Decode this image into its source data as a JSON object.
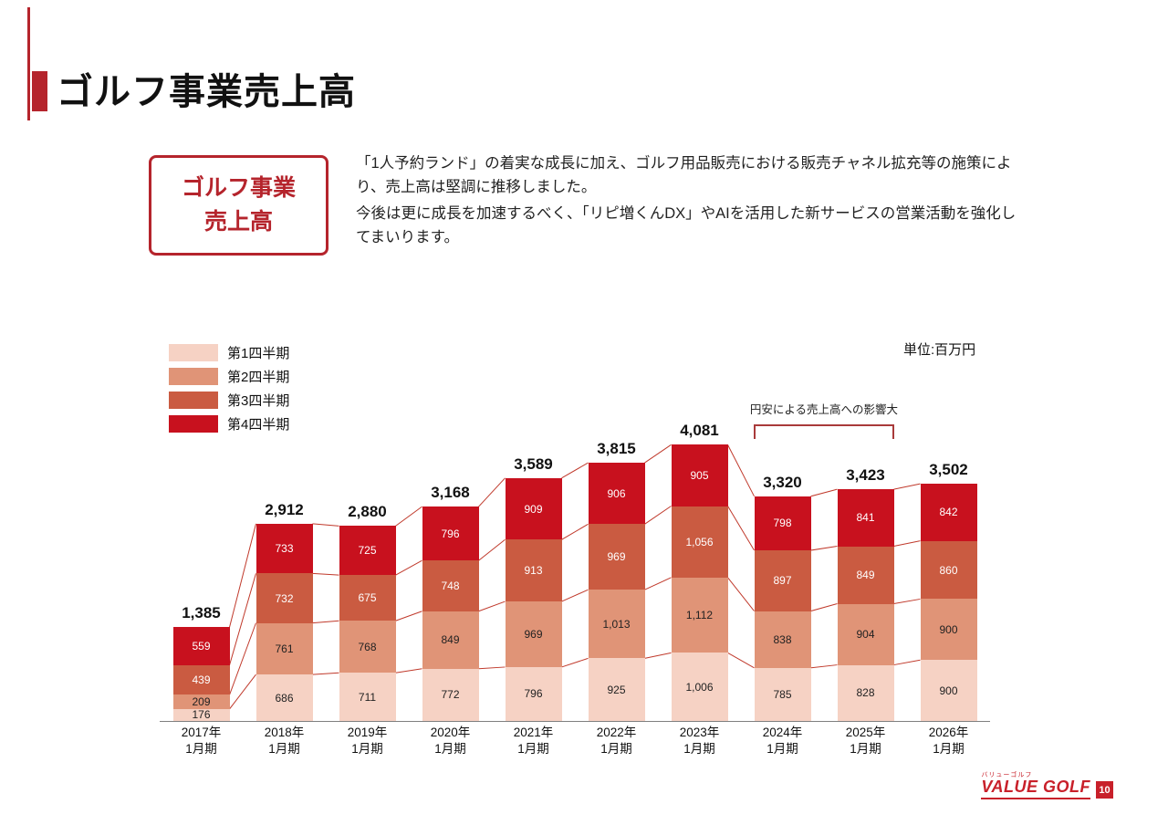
{
  "page": {
    "title": "ゴルフ事業売上高",
    "page_number": "10"
  },
  "summary_box": {
    "label_line1": "ゴルフ事業",
    "label_line2": "売上高"
  },
  "description": {
    "para1": "「1人予約ランド」の着実な成長に加え、ゴルフ用品販売における販売チャネル拡充等の施策により、売上高は堅調に推移しました。",
    "para2": "今後は更に成長を加速するべく、「リピ増くんDX」やAIを活用した新サービスの営業活動を強化してまいります。"
  },
  "chart_data": {
    "type": "bar",
    "stacked": true,
    "unit_label": "単位:百万円",
    "annotation": "円安による売上高への影響大",
    "annotation_span_categories": [
      "2024年1月期",
      "2025年1月期"
    ],
    "annotation_span_indexes": [
      7,
      8
    ],
    "legend": [
      "第1四半期",
      "第2四半期",
      "第3四半期",
      "第4四半期"
    ],
    "colors": [
      "#f6d2c4",
      "#e09477",
      "#ca5b41",
      "#c8111e"
    ],
    "label_colors": [
      "#222222",
      "#222222",
      "#ffffff",
      "#ffffff"
    ],
    "connector_color": "#c0392b",
    "categories": [
      [
        "2017年",
        "1月期"
      ],
      [
        "2018年",
        "1月期"
      ],
      [
        "2019年",
        "1月期"
      ],
      [
        "2020年",
        "1月期"
      ],
      [
        "2021年",
        "1月期"
      ],
      [
        "2022年",
        "1月期"
      ],
      [
        "2023年",
        "1月期"
      ],
      [
        "2024年",
        "1月期"
      ],
      [
        "2025年",
        "1月期"
      ],
      [
        "2026年",
        "1月期"
      ]
    ],
    "series": [
      {
        "name": "第1四半期",
        "values": [
          176,
          686,
          711,
          772,
          796,
          925,
          1006,
          785,
          828,
          900
        ]
      },
      {
        "name": "第2四半期",
        "values": [
          209,
          761,
          768,
          849,
          969,
          1013,
          1112,
          838,
          904,
          900
        ]
      },
      {
        "name": "第3四半期",
        "values": [
          439,
          732,
          675,
          748,
          913,
          969,
          1056,
          897,
          849,
          860
        ]
      },
      {
        "name": "第4四半期",
        "values": [
          559,
          733,
          725,
          796,
          909,
          906,
          905,
          798,
          841,
          842
        ]
      }
    ],
    "totals": [
      1385,
      2912,
      2880,
      3168,
      3589,
      3815,
      4081,
      3320,
      3423,
      3502
    ],
    "ylim": [
      0,
      4300
    ],
    "grid": false,
    "legend_position": "upper-left"
  },
  "footer": {
    "logo_small": "バリューゴルフ",
    "logo_text": "VALUE GOLF"
  }
}
